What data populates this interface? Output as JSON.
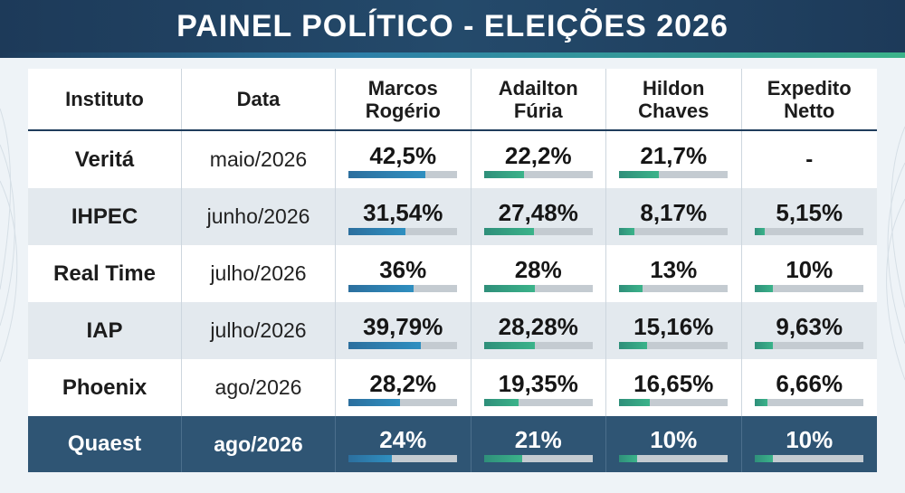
{
  "title": "PAINEL POLÍTICO - ELEIÇÕES 2026",
  "headers": {
    "institute": "Instituto",
    "date": "Data",
    "candidates": [
      {
        "line1": "Marcos",
        "line2": "Rogério"
      },
      {
        "line1": "Adailton",
        "line2": "Fúria"
      },
      {
        "line1": "Hildon",
        "line2": "Chaves"
      },
      {
        "line1": "Expedito",
        "line2": "Netto"
      }
    ]
  },
  "colors": {
    "header_bg": "#1d3a59",
    "highlight_row": "#2f5574",
    "bar_blue": "#2f8fc0",
    "bar_green": "#3bb38a",
    "bar_track": "#c4cbd1"
  },
  "rows": [
    {
      "institute": "Veritá",
      "date": "maio/2026",
      "values": [
        {
          "label": "42,5%",
          "value": 42.5
        },
        {
          "label": "22,2%",
          "value": 22.2
        },
        {
          "label": "21,7%",
          "value": 21.7
        },
        {
          "label": "-",
          "value": null
        }
      ]
    },
    {
      "institute": "IHPEC",
      "date": "junho/2026",
      "values": [
        {
          "label": "31,54%",
          "value": 31.54
        },
        {
          "label": "27,48%",
          "value": 27.48
        },
        {
          "label": "8,17%",
          "value": 8.17
        },
        {
          "label": "5,15%",
          "value": 5.15
        }
      ]
    },
    {
      "institute": "Real Time",
      "date": "julho/2026",
      "values": [
        {
          "label": "36%",
          "value": 36
        },
        {
          "label": "28%",
          "value": 28
        },
        {
          "label": "13%",
          "value": 13
        },
        {
          "label": "10%",
          "value": 10
        }
      ]
    },
    {
      "institute": "IAP",
      "date": "julho/2026",
      "values": [
        {
          "label": "39,79%",
          "value": 39.79
        },
        {
          "label": "28,28%",
          "value": 28.28
        },
        {
          "label": "15,16%",
          "value": 15.16
        },
        {
          "label": "9,63%",
          "value": 9.63
        }
      ]
    },
    {
      "institute": "Phoenix",
      "date": "ago/2026",
      "values": [
        {
          "label": "28,2%",
          "value": 28.2
        },
        {
          "label": "19,35%",
          "value": 19.35
        },
        {
          "label": "16,65%",
          "value": 16.65
        },
        {
          "label": "6,66%",
          "value": 6.66
        }
      ]
    },
    {
      "institute": "Quaest",
      "date": "ago/2026",
      "values": [
        {
          "label": "24%",
          "value": 24
        },
        {
          "label": "21%",
          "value": 21
        },
        {
          "label": "10%",
          "value": 10
        },
        {
          "label": "10%",
          "value": 10
        }
      ]
    }
  ]
}
